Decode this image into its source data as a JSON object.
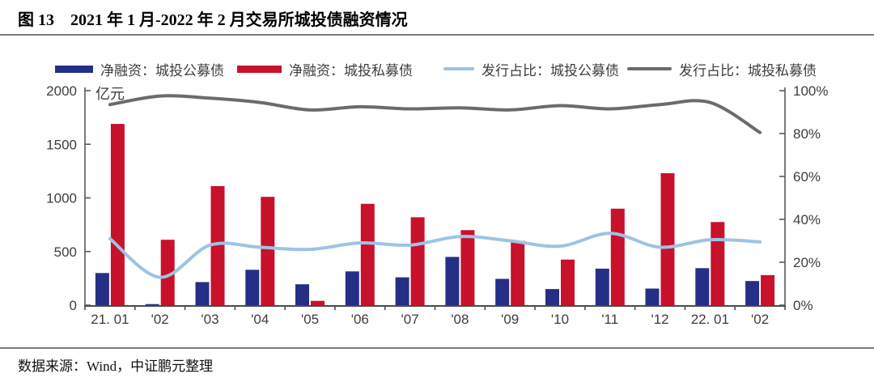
{
  "page": {
    "title": "图 13　2021 年 1 月-2022 年 2 月交易所城投债融资情况",
    "source": "数据来源：Wind，中证鹏元整理"
  },
  "chart_data": {
    "type": "bar",
    "subtype": "bar-line combo, dual axis",
    "title": "2021 年 1 月-2022 年 2 月交易所城投债融资情况",
    "categories": [
      "21. 01",
      "'02",
      "'03",
      "'04",
      "'05",
      "'06",
      "'07",
      "'08",
      "'09",
      "'10",
      "'11",
      "'12",
      "22. 01",
      "'02"
    ],
    "series": [
      {
        "name": "净融资：城投公募债",
        "type": "bar",
        "axis": "left",
        "color": "#252f85",
        "values": [
          300,
          10,
          215,
          330,
          195,
          315,
          260,
          450,
          245,
          150,
          340,
          155,
          345,
          225
        ]
      },
      {
        "name": "净融资：城投私募债",
        "type": "bar",
        "axis": "left",
        "color": "#c8112b",
        "values": [
          1690,
          610,
          1110,
          1010,
          40,
          945,
          820,
          700,
          600,
          425,
          900,
          1230,
          775,
          280
        ]
      },
      {
        "name": "发行占比：城投公募债",
        "type": "line",
        "axis": "right",
        "color": "#9dc3e6",
        "values_pct": [
          31,
          13,
          28,
          27,
          26,
          29,
          28,
          32,
          30,
          27.5,
          33.5,
          27,
          30.5,
          29.5
        ]
      },
      {
        "name": "发行占比：城投私募债",
        "type": "line",
        "axis": "right",
        "color": "#6b6b6b",
        "values_pct": [
          93.5,
          97.5,
          96.5,
          94.5,
          91,
          92.5,
          91.5,
          92,
          91,
          93,
          91.5,
          93.5,
          94.5,
          80.5
        ]
      }
    ],
    "left_axis": {
      "unit": "亿元",
      "min": 0,
      "max": 2000,
      "tick_labels": [
        "0",
        "500",
        "1000",
        "1500",
        "2000"
      ]
    },
    "right_axis": {
      "min": 0,
      "max": 100,
      "tick_labels": [
        "0%",
        "20%",
        "40%",
        "60%",
        "80%",
        "100%"
      ]
    },
    "legend_position": "top",
    "grid": "off"
  },
  "colors": {
    "axis_line": "#595959",
    "axis_label": "#3d3d3d",
    "divider": "#7b7b7b"
  }
}
